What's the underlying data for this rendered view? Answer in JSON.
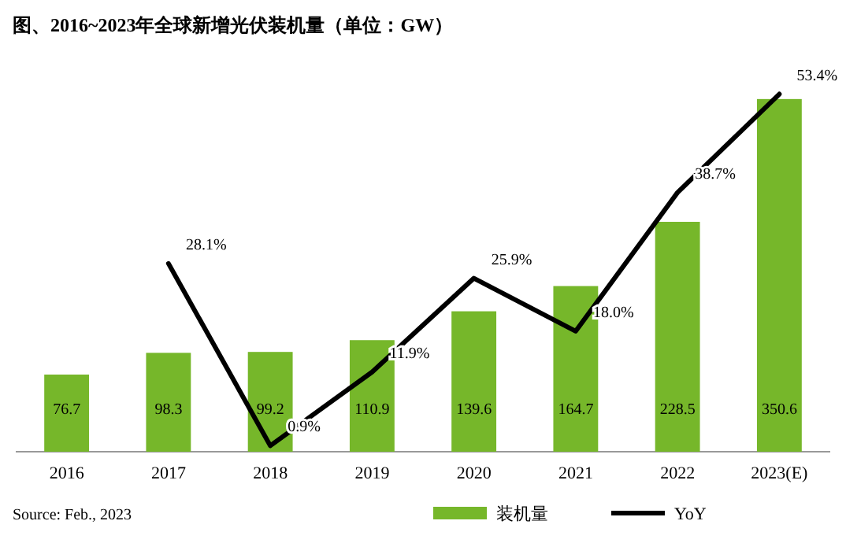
{
  "chart_data": {
    "type": "bar",
    "title": "图、2016~2023年全球新增光伏装机量（单位：GW）",
    "categories": [
      "2016",
      "2017",
      "2018",
      "2019",
      "2020",
      "2021",
      "2022",
      "2023(E)"
    ],
    "series": [
      {
        "name": "装机量",
        "color": "#76b72a",
        "values": [
          76.7,
          98.3,
          99.2,
          110.9,
          139.6,
          164.7,
          228.5,
          350.6
        ],
        "value_labels": [
          "76.7",
          "98.3",
          "99.2",
          "110.9",
          "139.6",
          "164.7",
          "228.5",
          "350.6"
        ]
      },
      {
        "name": "YoY",
        "type": "line",
        "axis": "y2",
        "color": "#000000",
        "values": [
          null,
          28.1,
          0.9,
          11.9,
          25.9,
          18.0,
          38.7,
          53.4
        ],
        "value_labels": [
          null,
          "28.1%",
          "0.9%",
          "11.9%",
          "25.9%",
          "18.0%",
          "38.7%",
          "53.4%"
        ]
      }
    ],
    "tick_labels": "x",
    "legend": "bottom",
    "grid": false,
    "annotations": [
      "Source: Feb., 2023"
    ]
  }
}
